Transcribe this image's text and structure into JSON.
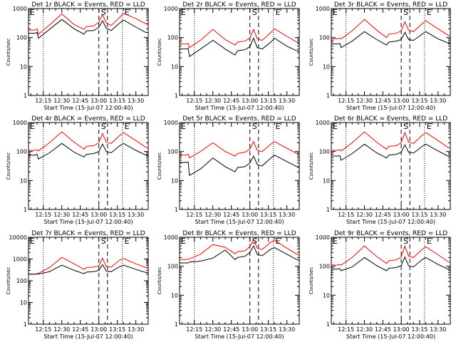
{
  "chart_data": {
    "type": "line",
    "layout": "3x3 grid",
    "shared": {
      "xlabel": "Start Time (15-Jul-07 12:00:40)",
      "ylabel": "Counts/sec",
      "x_ticks": [
        "12:15",
        "12:30",
        "12:45",
        "13:00",
        "13:15",
        "13:30"
      ],
      "x_tick_minutes": [
        15,
        30,
        45,
        60,
        75,
        90
      ],
      "xlim_minutes_after_1200": [
        3,
        100
      ],
      "yscale": "log",
      "dotted_markers_minutes": [
        15,
        79
      ],
      "dashed_markers_minutes": [
        60,
        67
      ],
      "corner_labels": {
        "left": "E",
        "start": "S",
        "end": "E"
      }
    },
    "series_colors": {
      "events": "#000000",
      "lld": "#ff0000"
    },
    "x_minutes": [
      3,
      8,
      10,
      11,
      20,
      30,
      40,
      48,
      50,
      56,
      60,
      63,
      66,
      70,
      77,
      80,
      90,
      98,
      100
    ],
    "panels": [
      {
        "title": "Det 1r BLACK = Events, RED = LLD",
        "ylim": [
          1,
          1000
        ],
        "y_tick_labels": [
          "1",
          "10",
          "100",
          "1000"
        ],
        "events": [
          140,
          140,
          150,
          95,
          190,
          420,
          200,
          130,
          170,
          175,
          225,
          380,
          210,
          175,
          320,
          400,
          230,
          150,
          150
        ],
        "lld": [
          180,
          180,
          200,
          130,
          270,
          650,
          280,
          190,
          240,
          250,
          340,
          630,
          320,
          260,
          500,
          680,
          450,
          300,
          280
        ]
      },
      {
        "title": "Det 2r BLACK = Events, RED = LLD",
        "ylim": [
          1,
          1000
        ],
        "y_tick_labels": [
          "1",
          "10",
          "100",
          "1000"
        ],
        "events": [
          40,
          40,
          42,
          22,
          40,
          80,
          40,
          25,
          35,
          38,
          48,
          95,
          45,
          40,
          70,
          95,
          50,
          35,
          34
        ],
        "lld": [
          60,
          60,
          62,
          45,
          80,
          190,
          85,
          55,
          70,
          75,
          95,
          190,
          90,
          80,
          150,
          200,
          110,
          70,
          65
        ]
      },
      {
        "title": "Det 3r BLACK = Events, RED = LLD",
        "ylim": [
          1,
          1000
        ],
        "y_tick_labels": [
          "1",
          "10",
          "100",
          "1000"
        ],
        "events": [
          60,
          60,
          62,
          45,
          75,
          160,
          85,
          55,
          70,
          75,
          85,
          150,
          85,
          80,
          130,
          160,
          90,
          65,
          62
        ],
        "lld": [
          90,
          90,
          95,
          90,
          170,
          420,
          180,
          100,
          130,
          140,
          170,
          350,
          180,
          160,
          300,
          380,
          200,
          120,
          115
        ]
      },
      {
        "title": "Det 4r BLACK = Events, RED = LLD",
        "ylim": [
          1,
          1000
        ],
        "y_tick_labels": [
          "1",
          "10",
          "100",
          "1000"
        ],
        "events": [
          75,
          75,
          80,
          55,
          90,
          190,
          95,
          65,
          80,
          85,
          100,
          180,
          100,
          90,
          160,
          190,
          110,
          75,
          72
        ],
        "lld": [
          110,
          110,
          115,
          105,
          200,
          480,
          210,
          120,
          150,
          160,
          200,
          420,
          210,
          190,
          360,
          450,
          240,
          140,
          130
        ]
      },
      {
        "title": "Det 5r BLACK = Events, RED = LLD",
        "ylim": [
          1,
          1000
        ],
        "y_tick_labels": [
          "1",
          "10",
          "100",
          "1000"
        ],
        "events": [
          42,
          42,
          44,
          15,
          25,
          60,
          30,
          20,
          28,
          30,
          40,
          70,
          35,
          32,
          60,
          75,
          45,
          30,
          28
        ],
        "lld": [
          75,
          75,
          80,
          60,
          100,
          200,
          100,
          70,
          85,
          95,
          120,
          220,
          110,
          100,
          180,
          220,
          130,
          85,
          80
        ]
      },
      {
        "title": "Det 6r BLACK = Events, RED = LLD",
        "ylim": [
          1,
          1000
        ],
        "y_tick_labels": [
          "1",
          "10",
          "100",
          "1000"
        ],
        "events": [
          70,
          70,
          72,
          50,
          85,
          180,
          90,
          60,
          75,
          80,
          95,
          170,
          95,
          88,
          150,
          180,
          105,
          70,
          68
        ],
        "lld": [
          110,
          110,
          115,
          105,
          200,
          480,
          210,
          120,
          150,
          160,
          200,
          450,
          210,
          190,
          360,
          450,
          240,
          140,
          130
        ]
      },
      {
        "title": "Det 7r BLACK = Events, RED = LLD",
        "ylim": [
          1,
          10000
        ],
        "y_tick_labels": [
          "1",
          "10",
          "100",
          "1000",
          "10000"
        ],
        "events": [
          200,
          200,
          205,
          200,
          260,
          520,
          300,
          210,
          250,
          260,
          300,
          550,
          280,
          260,
          450,
          520,
          330,
          240,
          230
        ],
        "lld": [
          200,
          200,
          210,
          220,
          400,
          1200,
          600,
          330,
          400,
          430,
          480,
          1100,
          450,
          420,
          900,
          1050,
          600,
          400,
          380
        ]
      },
      {
        "title": "Det 8r BLACK = Events, RED = LLD",
        "ylim": [
          1,
          1000
        ],
        "y_tick_labels": [
          "1",
          "10",
          "100",
          "1000"
        ],
        "events": [
          130,
          130,
          130,
          140,
          150,
          190,
          360,
          170,
          200,
          220,
          300,
          500,
          260,
          230,
          390,
          440,
          260,
          170,
          160
        ],
        "lld": [
          170,
          170,
          175,
          180,
          260,
          560,
          450,
          270,
          320,
          340,
          480,
          820,
          420,
          380,
          680,
          780,
          420,
          260,
          240
        ]
      },
      {
        "title": "Det 9r BLACK = Events, RED = LLD",
        "ylim": [
          1,
          1000
        ],
        "y_tick_labels": [
          "1",
          "10",
          "100",
          "1000"
        ],
        "events": [
          80,
          80,
          82,
          70,
          95,
          200,
          105,
          70,
          85,
          90,
          105,
          210,
          105,
          95,
          170,
          200,
          115,
          80,
          78
        ],
        "lld": [
          110,
          110,
          115,
          110,
          200,
          500,
          215,
          125,
          155,
          165,
          210,
          500,
          220,
          200,
          380,
          470,
          250,
          145,
          135
        ]
      }
    ]
  }
}
